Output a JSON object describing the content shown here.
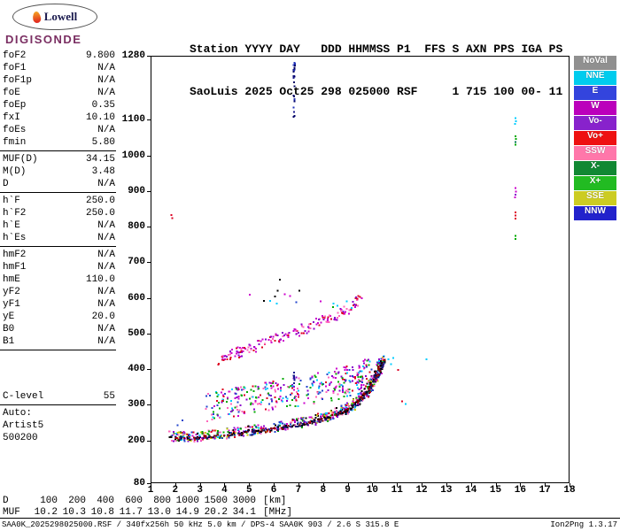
{
  "logo": {
    "name": "Lowell",
    "product": "DIGISONDE"
  },
  "header": {
    "line1": "Station YYYY DAY   DDD HHMMSS P1  FFS S AXN PPS IGA PS",
    "line2": "SaoLuis 2025 Oct25 298 025000 RSF     1 715 100 00- 11"
  },
  "params": {
    "groups": [
      {
        "rows": [
          [
            "foF2",
            "9.800"
          ],
          [
            "foF1",
            "N/A"
          ],
          [
            "foF1p",
            "N/A"
          ],
          [
            "foE",
            "N/A"
          ],
          [
            "foEp",
            "0.35"
          ],
          [
            "fxI",
            "10.10"
          ],
          [
            "foEs",
            "N/A"
          ],
          [
            "fmin",
            "5.80"
          ]
        ]
      },
      {
        "rows": [
          [
            "MUF(D)",
            "34.15"
          ],
          [
            "M(D)",
            "3.48"
          ],
          [
            "D",
            "N/A"
          ]
        ]
      },
      {
        "rows": [
          [
            "h`F",
            "250.0"
          ],
          [
            "h`F2",
            "250.0"
          ],
          [
            "h`E",
            "N/A"
          ],
          [
            "h`Es",
            "N/A"
          ]
        ]
      },
      {
        "rows": [
          [
            "hmF2",
            "N/A"
          ],
          [
            "hmF1",
            "N/A"
          ],
          [
            "hmE",
            "110.0"
          ],
          [
            "yF2",
            "N/A"
          ],
          [
            "yF1",
            "N/A"
          ],
          [
            "yE",
            "20.0"
          ],
          [
            "B0",
            "N/A"
          ],
          [
            "B1",
            "N/A"
          ]
        ]
      },
      {
        "gap_before": true,
        "rows": [
          [
            "C-level",
            "55"
          ]
        ]
      },
      {
        "rows": [
          [
            "Auto:",
            ""
          ],
          [
            "Artist5",
            ""
          ],
          [
            "500200",
            ""
          ]
        ]
      }
    ]
  },
  "legend": {
    "items": [
      {
        "label": "NoVal",
        "bg": "#909090",
        "fg": "#FFFFFF"
      },
      {
        "label": "NNE",
        "bg": "#00CCEE",
        "fg": "#FFFFFF"
      },
      {
        "label": "E",
        "bg": "#3344DD",
        "fg": "#FFFFFF"
      },
      {
        "label": "W",
        "bg": "#BB00BB",
        "fg": "#FFFFFF"
      },
      {
        "label": "Vo-",
        "bg": "#8822CC",
        "fg": "#FFFFFF"
      },
      {
        "label": "Vo+",
        "bg": "#EE1111",
        "fg": "#FFFFFF"
      },
      {
        "label": "SSW",
        "bg": "#FF77AA",
        "fg": "#FFFFFF"
      },
      {
        "label": "X-",
        "bg": "#118833",
        "fg": "#FFFFFF"
      },
      {
        "label": "X+",
        "bg": "#22BB22",
        "fg": "#FFFFFF"
      },
      {
        "label": "SSE",
        "bg": "#CCCC22",
        "fg": "#FFFFFF"
      },
      {
        "label": "NNW",
        "bg": "#2222CC",
        "fg": "#FFFFFF"
      }
    ]
  },
  "chart_data": {
    "type": "scatter",
    "title": "",
    "xlabel": "",
    "ylabel": "",
    "x_unit": "MHz",
    "y_unit": "km",
    "xlim": [
      1,
      18
    ],
    "ylim": [
      80,
      1280
    ],
    "x_ticks": [
      1,
      2,
      3,
      4,
      5,
      6,
      7,
      8,
      9,
      10,
      11,
      12,
      13,
      14,
      15,
      16,
      17,
      18
    ],
    "y_ticks": [
      1280,
      1100,
      1000,
      900,
      800,
      700,
      600,
      500,
      400,
      300,
      200,
      80
    ],
    "grid": false,
    "legend_position": "right",
    "traces": [
      {
        "name": "spread-f-band",
        "path": [
          [
            3.4,
            295
          ],
          [
            4.2,
            306
          ],
          [
            5.0,
            316
          ],
          [
            6.0,
            326
          ],
          [
            7.0,
            336
          ],
          [
            8.0,
            348
          ],
          [
            8.8,
            362
          ],
          [
            9.4,
            378
          ],
          [
            9.9,
            396
          ]
        ],
        "count": 360,
        "jitter_x": 0.18,
        "jitter_y": 42,
        "size": 2,
        "colors": [
          "#FF66BB",
          "#CC00CC",
          "#00AA00",
          "#DD0022",
          "#2244CC",
          "#00CCFF",
          "#8800CC"
        ]
      },
      {
        "name": "second-order-f-trace",
        "path": [
          [
            3.7,
            425
          ],
          [
            4.4,
            442
          ],
          [
            5.1,
            460
          ],
          [
            5.9,
            480
          ],
          [
            6.6,
            498
          ],
          [
            7.3,
            516
          ],
          [
            8.0,
            537
          ],
          [
            8.7,
            558
          ],
          [
            9.2,
            578
          ],
          [
            9.5,
            596
          ]
        ],
        "count": 180,
        "jitter_x": 0.12,
        "jitter_y": 14,
        "size": 2,
        "colors": [
          "#CC00CC",
          "#FF66BB",
          "#CC00CC",
          "#8800CC",
          "#DD0022"
        ]
      },
      {
        "name": "f-trace-scatter",
        "path": [
          [
            1.8,
            212
          ],
          [
            2.6,
            210
          ],
          [
            3.5,
            216
          ],
          [
            4.5,
            223
          ],
          [
            5.5,
            231
          ],
          [
            6.5,
            242
          ],
          [
            7.5,
            255
          ],
          [
            8.2,
            268
          ],
          [
            8.8,
            284
          ],
          [
            9.3,
            304
          ],
          [
            9.7,
            332
          ],
          [
            10.0,
            362
          ],
          [
            10.25,
            396
          ],
          [
            10.45,
            428
          ]
        ],
        "count": 620,
        "jitter_x": 0.12,
        "jitter_y": 14,
        "size": 2,
        "colors": [
          "#DD0022",
          "#FF66BB",
          "#2244CC",
          "#00AA00",
          "#CC00CC",
          "#00CCFF",
          "#8800CC",
          "#CCCC00",
          "#000000"
        ]
      },
      {
        "name": "f-trace-base",
        "path": [
          [
            1.8,
            207
          ],
          [
            2.6,
            205
          ],
          [
            3.5,
            211
          ],
          [
            4.5,
            218
          ],
          [
            5.5,
            226
          ],
          [
            6.5,
            237
          ],
          [
            7.5,
            250
          ],
          [
            8.2,
            263
          ],
          [
            8.8,
            279
          ],
          [
            9.3,
            299
          ],
          [
            9.7,
            327
          ],
          [
            10.0,
            357
          ],
          [
            10.25,
            391
          ],
          [
            10.45,
            424
          ]
        ],
        "count": 300,
        "jitter_x": 0.1,
        "jitter_y": 4,
        "size": 2,
        "colors": [
          "#000000",
          "#1A1A6E",
          "#8B0000"
        ]
      },
      {
        "name": "high-altitude-noise",
        "path": [
          [
            4.1,
            625
          ],
          [
            5.5,
            608
          ],
          [
            7.2,
            596
          ],
          [
            9.0,
            602
          ]
        ],
        "count": 16,
        "jitter_x": 0.45,
        "jitter_y": 30,
        "size": 2,
        "colors": [
          "#00AA00",
          "#2244CC",
          "#CC00CC",
          "#000000",
          "#00CCFF"
        ]
      },
      {
        "name": "interference-6.8mhz-top",
        "path": [
          [
            6.82,
            1100
          ],
          [
            6.83,
            1268
          ]
        ],
        "count": 26,
        "jitter_x": 0.03,
        "jitter_y": 5,
        "size": 2,
        "colors": [
          "#1A1A8E",
          "#2233BB",
          "#000066"
        ]
      },
      {
        "name": "interference-6.8mhz-mid",
        "path": [
          [
            6.82,
            355
          ],
          [
            6.82,
            390
          ]
        ],
        "count": 8,
        "jitter_x": 0.02,
        "jitter_y": 4,
        "size": 2,
        "colors": [
          "#1A1A8E"
        ]
      },
      {
        "name": "interference-15.8mhz",
        "size": 2,
        "points": [
          [
            15.8,
            1105,
            "#00CCFF"
          ],
          [
            15.82,
            1096,
            "#00CCFF"
          ],
          [
            15.79,
            1089,
            "#00CCFF"
          ],
          [
            15.8,
            1054,
            "#00AA00"
          ],
          [
            15.82,
            1046,
            "#00AA00"
          ],
          [
            15.8,
            1038,
            "#007755"
          ],
          [
            15.81,
            1030,
            "#00AA00"
          ],
          [
            15.8,
            908,
            "#CC00CC"
          ],
          [
            15.82,
            899,
            "#CC00CC"
          ],
          [
            15.8,
            890,
            "#8800CC"
          ],
          [
            15.79,
            882,
            "#CC00CC"
          ],
          [
            15.8,
            840,
            "#DD0022"
          ],
          [
            15.81,
            831,
            "#DD0022"
          ],
          [
            15.8,
            823,
            "#DD0022"
          ],
          [
            15.8,
            774,
            "#00AA00"
          ],
          [
            15.81,
            766,
            "#00AA00"
          ]
        ]
      },
      {
        "name": "isolated-echo-dots",
        "size": 2,
        "points": [
          [
            1.85,
            833,
            "#DD0022"
          ],
          [
            1.88,
            824,
            "#DD0022"
          ],
          [
            10.65,
            428,
            "#00CCFF"
          ],
          [
            10.85,
            432,
            "#00CCFF"
          ],
          [
            10.75,
            414,
            "#00CCFF"
          ],
          [
            11.05,
            398,
            "#DD0022"
          ],
          [
            11.2,
            310,
            "#DD0022"
          ],
          [
            11.35,
            302,
            "#00CCFF"
          ],
          [
            12.2,
            428,
            "#00CCFF"
          ],
          [
            2.1,
            243,
            "#2244CC"
          ],
          [
            2.3,
            256,
            "#2244CC"
          ],
          [
            6.25,
            652,
            "#000000"
          ]
        ]
      }
    ]
  },
  "footer": {
    "rows": [
      {
        "label": "D",
        "values": [
          "100",
          "200",
          "400",
          "600",
          "800",
          "1000",
          "1500",
          "3000"
        ],
        "unit": "[km]"
      },
      {
        "label": "MUF",
        "values": [
          "10.2",
          "10.3",
          "10.8",
          "11.7",
          "13.0",
          "14.9",
          "20.2",
          "34.1"
        ],
        "unit": "[MHz]"
      }
    ]
  },
  "statusbar": {
    "left": "SAA0K_2025298025000.RSF / 340fx256h 50 kHz 5.0 km / DPS-4 SAA0K 903 / 2.6 S 315.8 E",
    "right": "Ion2Png 1.3.17"
  }
}
